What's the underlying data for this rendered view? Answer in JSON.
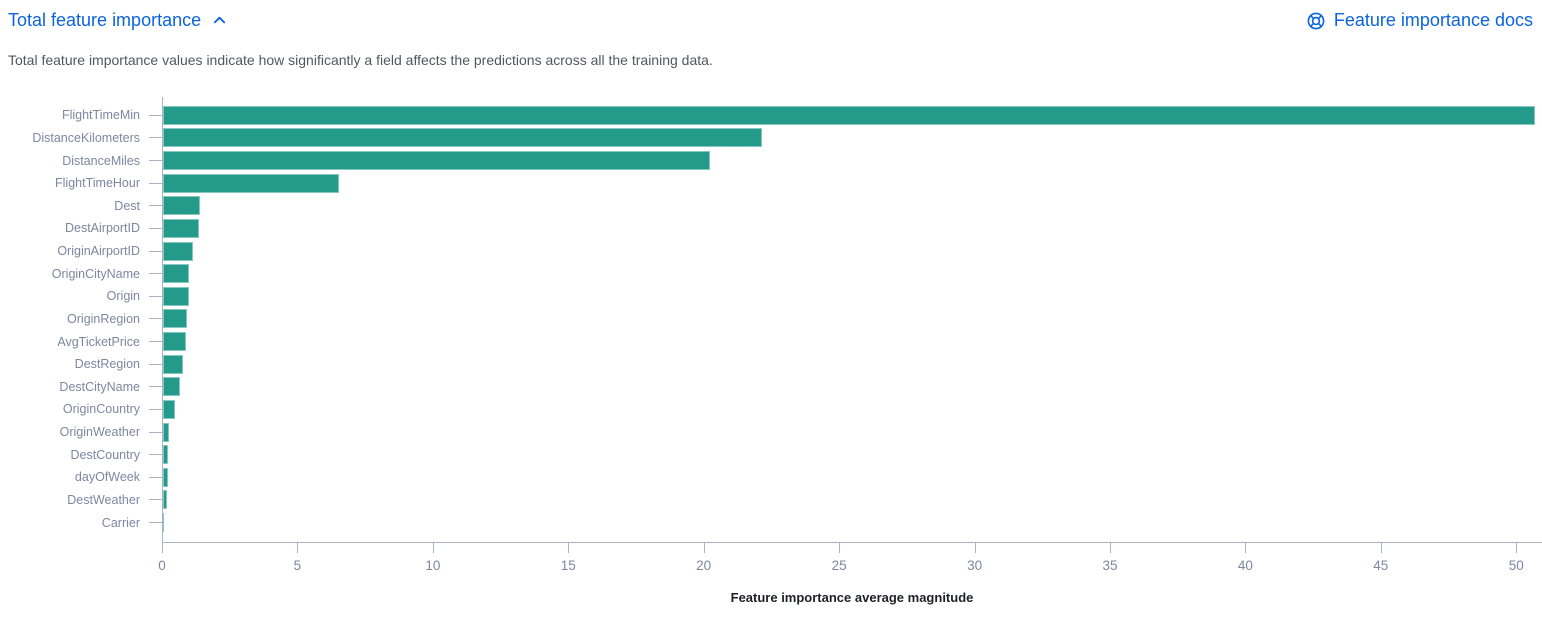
{
  "header": {
    "title": "Total feature importance",
    "collapse_icon": "chevron-up-icon",
    "docs_link": "Feature importance docs",
    "docs_icon": "life-buoy-icon"
  },
  "description": "Total feature importance values indicate how significantly a field affects the predictions across all the training data.",
  "colors": {
    "background": "#ffffff",
    "bar": "#239a8a",
    "link": "#0b64dd",
    "description_text": "#515761",
    "axis_label": "#7d87a1",
    "axis_line": "#aab3c5",
    "axis_title": "#1d2127"
  },
  "chart_data": {
    "type": "bar",
    "orientation": "horizontal",
    "title": "",
    "xlabel": "Feature importance average magnitude",
    "ylabel": "",
    "categories": [
      "FlightTimeMin",
      "DistanceKilometers",
      "DistanceMiles",
      "FlightTimeHour",
      "Dest",
      "DestAirportID",
      "OriginAirportID",
      "OriginCityName",
      "Origin",
      "OriginRegion",
      "AvgTicketPrice",
      "DestRegion",
      "DestCityName",
      "OriginCountry",
      "OriginWeather",
      "DestCountry",
      "dayOfWeek",
      "DestWeather",
      "Carrier"
    ],
    "values": [
      50.65,
      22.1,
      20.2,
      6.5,
      1.35,
      1.32,
      1.1,
      0.97,
      0.95,
      0.9,
      0.85,
      0.73,
      0.62,
      0.43,
      0.22,
      0.19,
      0.17,
      0.15,
      0.04
    ],
    "xlim": [
      0,
      50.95
    ],
    "xticks": [
      0,
      5,
      10,
      15,
      20,
      25,
      30,
      35,
      40,
      45,
      50
    ],
    "grid": false,
    "legend": false
  }
}
